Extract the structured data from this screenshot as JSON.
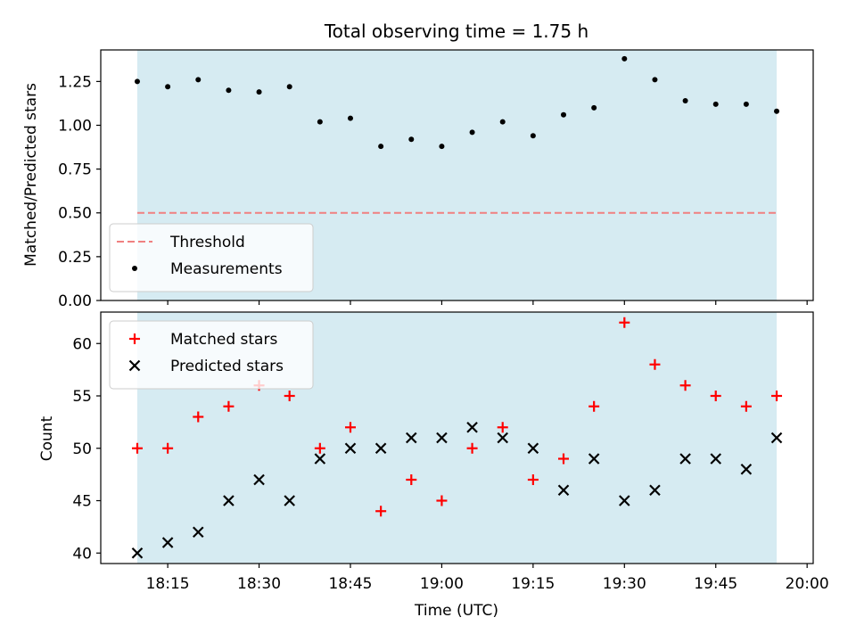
{
  "chart_data": [
    {
      "type": "scatter",
      "title": "Total observing time = 1.75 h",
      "xlabel": "",
      "ylabel": "Matched/Predicted stars",
      "xlim": [
        "18:04",
        "20:01"
      ],
      "ylim": [
        0.0,
        1.43
      ],
      "yticks": [
        0.0,
        0.25,
        0.5,
        0.75,
        1.0,
        1.25
      ],
      "ytick_labels": [
        "0.00",
        "0.25",
        "0.50",
        "0.75",
        "1.00",
        "1.25"
      ],
      "shaded_span": [
        "18:10",
        "19:55"
      ],
      "shaded_color": "#add8e6",
      "legend_position": "lower left",
      "threshold": {
        "name": "Threshold",
        "value": 0.5,
        "color": "#f08080",
        "style": "dashed"
      },
      "series": [
        {
          "name": "Measurements",
          "marker": "dot",
          "color": "#000000",
          "x": [
            "18:10",
            "18:15",
            "18:20",
            "18:25",
            "18:30",
            "18:35",
            "18:40",
            "18:45",
            "18:50",
            "18:55",
            "19:00",
            "19:05",
            "19:10",
            "19:15",
            "19:20",
            "19:25",
            "19:30",
            "19:35",
            "19:40",
            "19:45",
            "19:50",
            "19:55"
          ],
          "y": [
            1.25,
            1.22,
            1.26,
            1.2,
            1.19,
            1.22,
            1.02,
            1.04,
            0.88,
            0.92,
            0.88,
            0.96,
            1.02,
            0.94,
            1.06,
            1.1,
            1.38,
            1.26,
            1.14,
            1.12,
            1.12,
            1.08
          ]
        }
      ]
    },
    {
      "type": "scatter",
      "title": "",
      "xlabel": "Time (UTC)",
      "ylabel": "Count",
      "xlim": [
        "18:04",
        "20:01"
      ],
      "ylim": [
        39,
        63
      ],
      "yticks": [
        40,
        45,
        50,
        55,
        60
      ],
      "ytick_labels": [
        "40",
        "45",
        "50",
        "55",
        "60"
      ],
      "xticks": [
        "18:15",
        "18:30",
        "18:45",
        "19:00",
        "19:15",
        "19:30",
        "19:45",
        "20:00"
      ],
      "shaded_span": [
        "18:10",
        "19:55"
      ],
      "shaded_color": "#add8e6",
      "legend_position": "upper left",
      "series": [
        {
          "name": "Matched stars",
          "marker": "plus",
          "color": "#ff0000",
          "x": [
            "18:10",
            "18:15",
            "18:20",
            "18:25",
            "18:30",
            "18:35",
            "18:40",
            "18:45",
            "18:50",
            "18:55",
            "19:00",
            "19:05",
            "19:10",
            "19:15",
            "19:20",
            "19:25",
            "19:30",
            "19:35",
            "19:40",
            "19:45",
            "19:50",
            "19:55"
          ],
          "y": [
            50,
            50,
            53,
            54,
            56,
            55,
            50,
            52,
            44,
            47,
            45,
            50,
            52,
            47,
            49,
            54,
            62,
            58,
            56,
            55,
            54,
            55
          ]
        },
        {
          "name": "Predicted stars",
          "marker": "x",
          "color": "#000000",
          "x": [
            "18:10",
            "18:15",
            "18:20",
            "18:25",
            "18:30",
            "18:35",
            "18:40",
            "18:45",
            "18:50",
            "18:55",
            "19:00",
            "19:05",
            "19:10",
            "19:15",
            "19:20",
            "19:25",
            "19:30",
            "19:35",
            "19:40",
            "19:45",
            "19:50",
            "19:55"
          ],
          "y": [
            40,
            41,
            42,
            45,
            47,
            45,
            49,
            50,
            50,
            51,
            51,
            52,
            51,
            50,
            46,
            49,
            45,
            46,
            49,
            49,
            48,
            51
          ]
        }
      ]
    }
  ]
}
